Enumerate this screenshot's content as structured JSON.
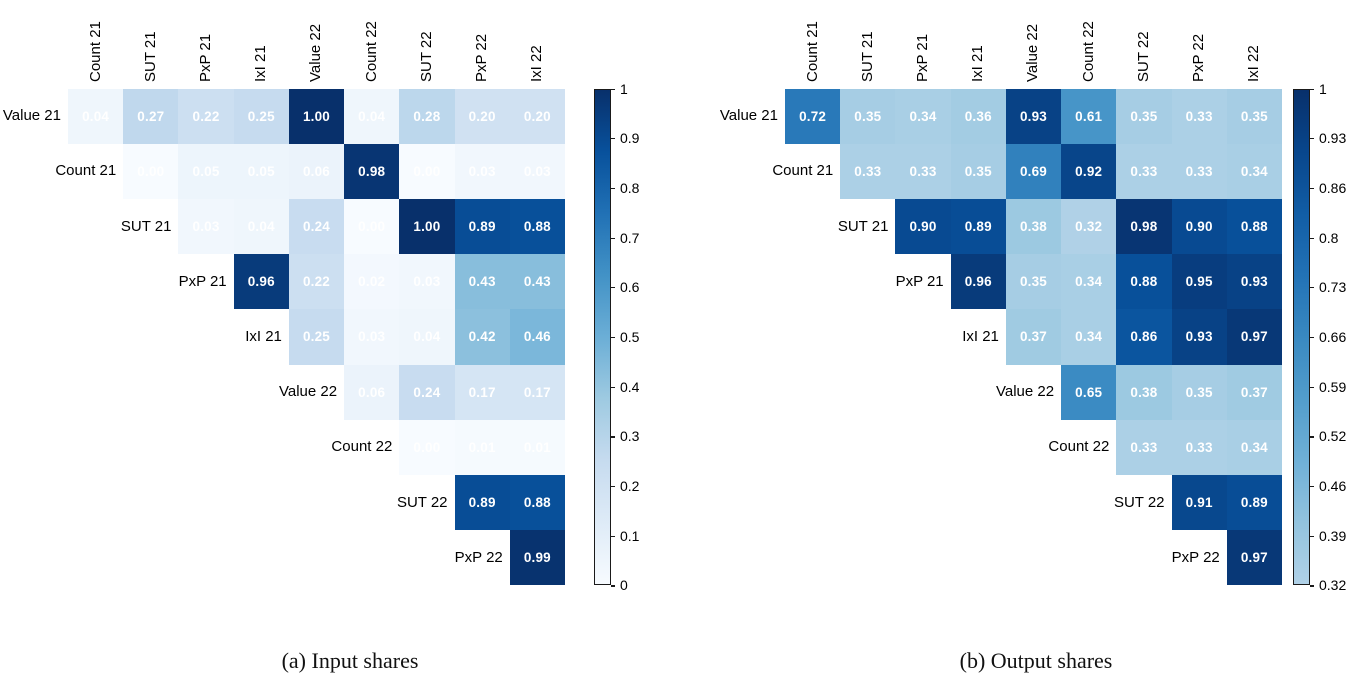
{
  "colors": {
    "colormap_name": "Blues",
    "colormap_anchors": [
      "#f7fbff",
      "#deebf7",
      "#c6dbef",
      "#9ecae1",
      "#6baed6",
      "#4292c6",
      "#2171b5",
      "#08519c",
      "#08306b"
    ],
    "cell_text": "#ffffff",
    "label_text": "#000000"
  },
  "chart_data": [
    {
      "type": "heatmap",
      "panel": "a",
      "title": "(a) Input shares",
      "shape": "upper-triangular",
      "columns": [
        "Count 21",
        "SUT 21",
        "PxP 21",
        "IxI 21",
        "Value 22",
        "Count 22",
        "SUT 22",
        "PxP 22",
        "IxI 22"
      ],
      "rows": [
        "Value 21",
        "Count 21",
        "SUT 21",
        "PxP 21",
        "IxI 21",
        "Value 22",
        "Count 22",
        "SUT 22",
        "PxP 22"
      ],
      "values": [
        [
          0.04,
          0.27,
          0.22,
          0.25,
          1.0,
          0.04,
          0.28,
          0.2,
          0.2
        ],
        [
          null,
          0.0,
          0.05,
          0.05,
          0.06,
          0.98,
          0.0,
          0.03,
          0.03
        ],
        [
          null,
          null,
          0.03,
          0.04,
          0.24,
          0.0,
          1.0,
          0.89,
          0.88
        ],
        [
          null,
          null,
          null,
          0.96,
          0.22,
          0.02,
          0.03,
          0.43,
          0.43
        ],
        [
          null,
          null,
          null,
          null,
          0.25,
          0.03,
          0.04,
          0.42,
          0.46
        ],
        [
          null,
          null,
          null,
          null,
          null,
          0.06,
          0.24,
          0.17,
          0.17
        ],
        [
          null,
          null,
          null,
          null,
          null,
          null,
          0.0,
          0.01,
          0.01
        ],
        [
          null,
          null,
          null,
          null,
          null,
          null,
          null,
          0.89,
          0.88
        ],
        [
          null,
          null,
          null,
          null,
          null,
          null,
          null,
          null,
          0.99
        ]
      ],
      "colorbar": {
        "vmin": 0,
        "vmax": 1,
        "tick_labels": [
          "1",
          "0.9",
          "0.8",
          "0.7",
          "0.6",
          "0.5",
          "0.4",
          "0.3",
          "0.2",
          "0.1",
          "0"
        ]
      }
    },
    {
      "type": "heatmap",
      "panel": "b",
      "title": "(b) Output shares",
      "shape": "upper-triangular",
      "columns": [
        "Count 21",
        "SUT 21",
        "PxP 21",
        "IxI 21",
        "Value 22",
        "Count 22",
        "SUT 22",
        "PxP 22",
        "IxI 22"
      ],
      "rows": [
        "Value 21",
        "Count 21",
        "SUT 21",
        "PxP 21",
        "IxI 21",
        "Value 22",
        "Count 22",
        "SUT 22",
        "PxP 22"
      ],
      "values": [
        [
          0.72,
          0.35,
          0.34,
          0.36,
          0.93,
          0.61,
          0.35,
          0.33,
          0.35
        ],
        [
          null,
          0.33,
          0.33,
          0.35,
          0.69,
          0.92,
          0.33,
          0.33,
          0.34
        ],
        [
          null,
          null,
          0.9,
          0.89,
          0.38,
          0.32,
          0.98,
          0.9,
          0.88
        ],
        [
          null,
          null,
          null,
          0.96,
          0.35,
          0.34,
          0.88,
          0.95,
          0.93
        ],
        [
          null,
          null,
          null,
          null,
          0.37,
          0.34,
          0.86,
          0.93,
          0.97
        ],
        [
          null,
          null,
          null,
          null,
          null,
          0.65,
          0.38,
          0.35,
          0.37
        ],
        [
          null,
          null,
          null,
          null,
          null,
          null,
          0.33,
          0.33,
          0.34
        ],
        [
          null,
          null,
          null,
          null,
          null,
          null,
          null,
          0.91,
          0.89
        ],
        [
          null,
          null,
          null,
          null,
          null,
          null,
          null,
          null,
          0.97
        ]
      ],
      "colorbar": {
        "vmin": 0.32,
        "vmax": 1,
        "tick_labels": [
          "1",
          "0.93",
          "0.86",
          "0.8",
          "0.73",
          "0.66",
          "0.59",
          "0.52",
          "0.46",
          "0.39",
          "0.32"
        ]
      }
    }
  ]
}
